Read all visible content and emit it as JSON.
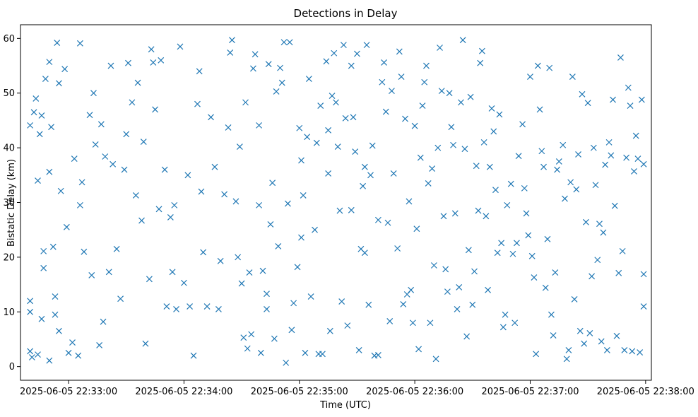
{
  "chart_data": {
    "type": "scatter",
    "title": "Detections in Delay",
    "xlabel": "Time (UTC)",
    "ylabel": "Bistatic Delay (km)",
    "marker": "x",
    "color": "#1f77b4",
    "grid": false,
    "xlim": [
      "2025-06-05 22:32:35",
      "2025-06-05 22:38:03"
    ],
    "ylim": [
      -2.5,
      62.5
    ],
    "x_ticks": [
      "2025-06-05 22:33:00",
      "2025-06-05 22:34:00",
      "2025-06-05 22:35:00",
      "2025-06-05 22:36:00",
      "2025-06-05 22:37:00",
      "2025-06-05 22:38:00"
    ],
    "y_ticks": [
      0,
      10,
      20,
      30,
      40,
      50,
      60
    ],
    "points": [
      [
        "2025-06-05 22:32:40",
        44.1
      ],
      [
        "2025-06-05 22:32:42",
        46.5
      ],
      [
        "2025-06-05 22:32:43",
        49.0
      ],
      [
        "2025-06-05 22:32:44",
        34.0
      ],
      [
        "2025-06-05 22:32:45",
        42.5
      ],
      [
        "2025-06-05 22:32:46",
        45.9
      ],
      [
        "2025-06-05 22:32:47",
        21.1
      ],
      [
        "2025-06-05 22:32:47",
        18.0
      ],
      [
        "2025-06-05 22:32:48",
        52.6
      ],
      [
        "2025-06-05 22:32:50",
        55.7
      ],
      [
        "2025-06-05 22:32:50",
        35.6
      ],
      [
        "2025-06-05 22:32:51",
        43.8
      ],
      [
        "2025-06-05 22:32:52",
        21.9
      ],
      [
        "2025-06-05 22:32:54",
        59.2
      ],
      [
        "2025-06-05 22:32:55",
        51.8
      ],
      [
        "2025-06-05 22:32:56",
        32.1
      ],
      [
        "2025-06-05 22:32:58",
        54.4
      ],
      [
        "2025-06-05 22:32:40",
        12.0
      ],
      [
        "2025-06-05 22:32:40",
        10.0
      ],
      [
        "2025-06-05 22:32:40",
        2.8
      ],
      [
        "2025-06-05 22:32:41",
        1.7
      ],
      [
        "2025-06-05 22:32:44",
        2.2
      ],
      [
        "2025-06-05 22:32:46",
        8.7
      ],
      [
        "2025-06-05 22:32:50",
        1.1
      ],
      [
        "2025-06-05 22:32:53",
        12.8
      ],
      [
        "2025-06-05 22:32:53",
        9.5
      ],
      [
        "2025-06-05 22:32:55",
        6.5
      ],
      [
        "2025-06-05 22:32:59",
        25.5
      ],
      [
        "2025-06-05 22:33:00",
        2.5
      ],
      [
        "2025-06-05 22:33:02",
        4.4
      ],
      [
        "2025-06-05 22:33:03",
        38.0
      ],
      [
        "2025-06-05 22:33:05",
        2.0
      ],
      [
        "2025-06-05 22:33:06",
        59.1
      ],
      [
        "2025-06-05 22:33:06",
        29.5
      ],
      [
        "2025-06-05 22:33:07",
        33.7
      ],
      [
        "2025-06-05 22:33:08",
        21.0
      ],
      [
        "2025-06-05 22:33:11",
        46.0
      ],
      [
        "2025-06-05 22:33:12",
        16.7
      ],
      [
        "2025-06-05 22:33:13",
        50.0
      ],
      [
        "2025-06-05 22:33:14",
        40.6
      ],
      [
        "2025-06-05 22:33:16",
        3.9
      ],
      [
        "2025-06-05 22:33:17",
        44.3
      ],
      [
        "2025-06-05 22:33:18",
        8.2
      ],
      [
        "2025-06-05 22:33:19",
        38.4
      ],
      [
        "2025-06-05 22:33:21",
        17.3
      ],
      [
        "2025-06-05 22:33:22",
        55.0
      ],
      [
        "2025-06-05 22:33:23",
        37.0
      ],
      [
        "2025-06-05 22:33:25",
        21.5
      ],
      [
        "2025-06-05 22:33:27",
        12.4
      ],
      [
        "2025-06-05 22:33:29",
        36.0
      ],
      [
        "2025-06-05 22:33:30",
        42.5
      ],
      [
        "2025-06-05 22:33:31",
        55.5
      ],
      [
        "2025-06-05 22:33:33",
        48.3
      ],
      [
        "2025-06-05 22:33:35",
        31.3
      ],
      [
        "2025-06-05 22:33:36",
        51.9
      ],
      [
        "2025-06-05 22:33:38",
        26.7
      ],
      [
        "2025-06-05 22:33:39",
        41.1
      ],
      [
        "2025-06-05 22:33:40",
        4.2
      ],
      [
        "2025-06-05 22:33:42",
        16.0
      ],
      [
        "2025-06-05 22:33:43",
        58.0
      ],
      [
        "2025-06-05 22:33:44",
        55.6
      ],
      [
        "2025-06-05 22:33:45",
        47.0
      ],
      [
        "2025-06-05 22:33:47",
        28.8
      ],
      [
        "2025-06-05 22:33:48",
        56.0
      ],
      [
        "2025-06-05 22:33:50",
        36.0
      ],
      [
        "2025-06-05 22:33:51",
        11.0
      ],
      [
        "2025-06-05 22:33:53",
        27.3
      ],
      [
        "2025-06-05 22:33:54",
        17.3
      ],
      [
        "2025-06-05 22:33:55",
        29.5
      ],
      [
        "2025-06-05 22:33:56",
        10.5
      ],
      [
        "2025-06-05 22:33:58",
        58.5
      ],
      [
        "2025-06-05 22:34:00",
        15.3
      ],
      [
        "2025-06-05 22:34:02",
        35.0
      ],
      [
        "2025-06-05 22:34:03",
        11.0
      ],
      [
        "2025-06-05 22:34:05",
        2.0
      ],
      [
        "2025-06-05 22:34:07",
        48.0
      ],
      [
        "2025-06-05 22:34:08",
        54.0
      ],
      [
        "2025-06-05 22:34:09",
        32.0
      ],
      [
        "2025-06-05 22:34:10",
        20.9
      ],
      [
        "2025-06-05 22:34:12",
        11.0
      ],
      [
        "2025-06-05 22:34:14",
        45.6
      ],
      [
        "2025-06-05 22:34:16",
        36.5
      ],
      [
        "2025-06-05 22:34:18",
        10.5
      ],
      [
        "2025-06-05 22:34:19",
        19.3
      ],
      [
        "2025-06-05 22:34:21",
        31.5
      ],
      [
        "2025-06-05 22:34:23",
        43.7
      ],
      [
        "2025-06-05 22:34:24",
        57.4
      ],
      [
        "2025-06-05 22:34:25",
        59.7
      ],
      [
        "2025-06-05 22:34:27",
        30.2
      ],
      [
        "2025-06-05 22:34:28",
        20.0
      ],
      [
        "2025-06-05 22:34:29",
        40.2
      ],
      [
        "2025-06-05 22:34:30",
        15.2
      ],
      [
        "2025-06-05 22:34:31",
        5.3
      ],
      [
        "2025-06-05 22:34:32",
        48.3
      ],
      [
        "2025-06-05 22:34:33",
        3.3
      ],
      [
        "2025-06-05 22:34:34",
        17.2
      ],
      [
        "2025-06-05 22:34:35",
        5.9
      ],
      [
        "2025-06-05 22:34:36",
        54.5
      ],
      [
        "2025-06-05 22:34:37",
        57.1
      ],
      [
        "2025-06-05 22:34:39",
        29.5
      ],
      [
        "2025-06-05 22:34:39",
        44.1
      ],
      [
        "2025-06-05 22:34:40",
        2.5
      ],
      [
        "2025-06-05 22:34:41",
        17.5
      ],
      [
        "2025-06-05 22:34:43",
        13.3
      ],
      [
        "2025-06-05 22:34:43",
        10.5
      ],
      [
        "2025-06-05 22:34:44",
        55.3
      ],
      [
        "2025-06-05 22:34:45",
        26.0
      ],
      [
        "2025-06-05 22:34:46",
        33.6
      ],
      [
        "2025-06-05 22:34:47",
        5.1
      ],
      [
        "2025-06-05 22:34:48",
        50.3
      ],
      [
        "2025-06-05 22:34:49",
        22.0
      ],
      [
        "2025-06-05 22:34:50",
        54.6
      ],
      [
        "2025-06-05 22:34:51",
        51.9
      ],
      [
        "2025-06-05 22:34:52",
        59.3
      ],
      [
        "2025-06-05 22:34:53",
        0.7
      ],
      [
        "2025-06-05 22:34:54",
        29.8
      ],
      [
        "2025-06-05 22:34:55",
        59.3
      ],
      [
        "2025-06-05 22:34:56",
        6.7
      ],
      [
        "2025-06-05 22:34:57",
        11.6
      ],
      [
        "2025-06-05 22:34:59",
        18.2
      ],
      [
        "2025-06-05 22:35:00",
        43.6
      ],
      [
        "2025-06-05 22:35:01",
        37.7
      ],
      [
        "2025-06-05 22:35:01",
        23.6
      ],
      [
        "2025-06-05 22:35:02",
        31.3
      ],
      [
        "2025-06-05 22:35:03",
        2.5
      ],
      [
        "2025-06-05 22:35:04",
        42.0
      ],
      [
        "2025-06-05 22:35:05",
        52.6
      ],
      [
        "2025-06-05 22:35:06",
        12.8
      ],
      [
        "2025-06-05 22:35:08",
        25.0
      ],
      [
        "2025-06-05 22:35:09",
        40.9
      ],
      [
        "2025-06-05 22:35:10",
        2.3
      ],
      [
        "2025-06-05 22:35:11",
        47.7
      ],
      [
        "2025-06-05 22:35:12",
        2.3
      ],
      [
        "2025-06-05 22:35:14",
        55.8
      ],
      [
        "2025-06-05 22:35:15",
        43.2
      ],
      [
        "2025-06-05 22:35:15",
        35.3
      ],
      [
        "2025-06-05 22:35:16",
        6.5
      ],
      [
        "2025-06-05 22:35:17",
        49.5
      ],
      [
        "2025-06-05 22:35:18",
        57.3
      ],
      [
        "2025-06-05 22:35:19",
        48.3
      ],
      [
        "2025-06-05 22:35:20",
        40.2
      ],
      [
        "2025-06-05 22:35:21",
        28.5
      ],
      [
        "2025-06-05 22:35:22",
        11.9
      ],
      [
        "2025-06-05 22:35:23",
        58.8
      ],
      [
        "2025-06-05 22:35:24",
        45.4
      ],
      [
        "2025-06-05 22:35:25",
        7.5
      ],
      [
        "2025-06-05 22:35:27",
        55.0
      ],
      [
        "2025-06-05 22:35:27",
        28.6
      ],
      [
        "2025-06-05 22:35:28",
        45.6
      ],
      [
        "2025-06-05 22:35:29",
        39.3
      ],
      [
        "2025-06-05 22:35:30",
        57.2
      ],
      [
        "2025-06-05 22:35:31",
        3.0
      ],
      [
        "2025-06-05 22:35:32",
        21.5
      ],
      [
        "2025-06-05 22:35:33",
        33.0
      ],
      [
        "2025-06-05 22:35:34",
        36.5
      ],
      [
        "2025-06-05 22:35:34",
        20.8
      ],
      [
        "2025-06-05 22:35:35",
        58.8
      ],
      [
        "2025-06-05 22:35:36",
        11.3
      ],
      [
        "2025-06-05 22:35:37",
        35.0
      ],
      [
        "2025-06-05 22:35:38",
        40.4
      ],
      [
        "2025-06-05 22:35:39",
        2.0
      ],
      [
        "2025-06-05 22:35:41",
        2.1
      ],
      [
        "2025-06-05 22:35:41",
        26.8
      ],
      [
        "2025-06-05 22:35:43",
        52.0
      ],
      [
        "2025-06-05 22:35:44",
        55.6
      ],
      [
        "2025-06-05 22:35:45",
        46.6
      ],
      [
        "2025-06-05 22:35:46",
        26.3
      ],
      [
        "2025-06-05 22:35:47",
        8.3
      ],
      [
        "2025-06-05 22:35:48",
        50.4
      ],
      [
        "2025-06-05 22:35:49",
        35.3
      ],
      [
        "2025-06-05 22:35:51",
        21.6
      ],
      [
        "2025-06-05 22:35:52",
        57.6
      ],
      [
        "2025-06-05 22:35:53",
        53.0
      ],
      [
        "2025-06-05 22:35:54",
        11.4
      ],
      [
        "2025-06-05 22:35:55",
        45.3
      ],
      [
        "2025-06-05 22:35:56",
        13.2
      ],
      [
        "2025-06-05 22:35:57",
        30.2
      ],
      [
        "2025-06-05 22:35:58",
        14.0
      ],
      [
        "2025-06-05 22:35:59",
        8.0
      ],
      [
        "2025-06-05 22:36:00",
        44.0
      ],
      [
        "2025-06-05 22:36:01",
        25.2
      ],
      [
        "2025-06-05 22:36:02",
        3.2
      ],
      [
        "2025-06-05 22:36:03",
        38.2
      ],
      [
        "2025-06-05 22:36:04",
        47.7
      ],
      [
        "2025-06-05 22:36:05",
        52.0
      ],
      [
        "2025-06-05 22:36:06",
        55.0
      ],
      [
        "2025-06-05 22:36:07",
        33.5
      ],
      [
        "2025-06-05 22:36:08",
        8.0
      ],
      [
        "2025-06-05 22:36:09",
        36.2
      ],
      [
        "2025-06-05 22:36:10",
        18.5
      ],
      [
        "2025-06-05 22:36:11",
        1.4
      ],
      [
        "2025-06-05 22:36:12",
        40.0
      ],
      [
        "2025-06-05 22:36:13",
        58.3
      ],
      [
        "2025-06-05 22:36:14",
        50.4
      ],
      [
        "2025-06-05 22:36:15",
        27.5
      ],
      [
        "2025-06-05 22:36:16",
        17.8
      ],
      [
        "2025-06-05 22:36:17",
        13.7
      ],
      [
        "2025-06-05 22:36:18",
        50.0
      ],
      [
        "2025-06-05 22:36:19",
        43.8
      ],
      [
        "2025-06-05 22:36:20",
        40.5
      ],
      [
        "2025-06-05 22:36:21",
        28.0
      ],
      [
        "2025-06-05 22:36:22",
        10.5
      ],
      [
        "2025-06-05 22:36:23",
        14.5
      ],
      [
        "2025-06-05 22:36:24",
        48.3
      ],
      [
        "2025-06-05 22:36:25",
        59.7
      ],
      [
        "2025-06-05 22:36:26",
        39.8
      ],
      [
        "2025-06-05 22:36:27",
        5.5
      ],
      [
        "2025-06-05 22:36:28",
        21.3
      ],
      [
        "2025-06-05 22:36:29",
        49.3
      ],
      [
        "2025-06-05 22:36:30",
        11.3
      ],
      [
        "2025-06-05 22:36:31",
        17.4
      ],
      [
        "2025-06-05 22:36:32",
        36.7
      ],
      [
        "2025-06-05 22:36:33",
        28.5
      ],
      [
        "2025-06-05 22:36:34",
        55.5
      ],
      [
        "2025-06-05 22:36:35",
        57.7
      ],
      [
        "2025-06-05 22:36:36",
        41.0
      ],
      [
        "2025-06-05 22:36:37",
        27.5
      ],
      [
        "2025-06-05 22:36:38",
        14.0
      ],
      [
        "2025-06-05 22:36:39",
        36.5
      ],
      [
        "2025-06-05 22:36:40",
        47.2
      ],
      [
        "2025-06-05 22:36:41",
        43.0
      ],
      [
        "2025-06-05 22:36:42",
        32.3
      ],
      [
        "2025-06-05 22:36:43",
        20.8
      ],
      [
        "2025-06-05 22:36:44",
        46.1
      ],
      [
        "2025-06-05 22:36:45",
        22.6
      ],
      [
        "2025-06-05 22:36:46",
        7.2
      ],
      [
        "2025-06-05 22:36:47",
        9.5
      ],
      [
        "2025-06-05 22:36:48",
        29.5
      ],
      [
        "2025-06-05 22:36:50",
        33.4
      ],
      [
        "2025-06-05 22:36:51",
        20.6
      ],
      [
        "2025-06-05 22:36:52",
        8.0
      ],
      [
        "2025-06-05 22:36:53",
        22.6
      ],
      [
        "2025-06-05 22:36:54",
        38.5
      ],
      [
        "2025-06-05 22:36:56",
        44.3
      ],
      [
        "2025-06-05 22:36:57",
        32.6
      ],
      [
        "2025-06-05 22:36:58",
        28.0
      ],
      [
        "2025-06-05 22:36:59",
        24.0
      ],
      [
        "2025-06-05 22:37:00",
        53.0
      ],
      [
        "2025-06-05 22:37:01",
        20.2
      ],
      [
        "2025-06-05 22:37:02",
        16.3
      ],
      [
        "2025-06-05 22:37:03",
        2.3
      ],
      [
        "2025-06-05 22:37:04",
        55.0
      ],
      [
        "2025-06-05 22:37:05",
        47.0
      ],
      [
        "2025-06-05 22:37:06",
        39.4
      ],
      [
        "2025-06-05 22:37:07",
        36.5
      ],
      [
        "2025-06-05 22:37:08",
        14.4
      ],
      [
        "2025-06-05 22:37:09",
        23.3
      ],
      [
        "2025-06-05 22:37:10",
        54.6
      ],
      [
        "2025-06-05 22:37:11",
        9.5
      ],
      [
        "2025-06-05 22:37:12",
        5.7
      ],
      [
        "2025-06-05 22:37:13",
        17.2
      ],
      [
        "2025-06-05 22:37:14",
        36.0
      ],
      [
        "2025-06-05 22:37:15",
        37.5
      ],
      [
        "2025-06-05 22:37:17",
        40.5
      ],
      [
        "2025-06-05 22:37:18",
        30.7
      ],
      [
        "2025-06-05 22:37:19",
        1.4
      ],
      [
        "2025-06-05 22:37:20",
        3.0
      ],
      [
        "2025-06-05 22:37:21",
        33.7
      ],
      [
        "2025-06-05 22:37:22",
        53.0
      ],
      [
        "2025-06-05 22:37:23",
        12.3
      ],
      [
        "2025-06-05 22:37:24",
        32.4
      ],
      [
        "2025-06-05 22:37:25",
        38.8
      ],
      [
        "2025-06-05 22:37:26",
        6.5
      ],
      [
        "2025-06-05 22:37:27",
        49.8
      ],
      [
        "2025-06-05 22:37:28",
        4.2
      ],
      [
        "2025-06-05 22:37:29",
        26.4
      ],
      [
        "2025-06-05 22:37:30",
        48.2
      ],
      [
        "2025-06-05 22:37:31",
        6.1
      ],
      [
        "2025-06-05 22:37:32",
        16.5
      ],
      [
        "2025-06-05 22:37:33",
        40.0
      ],
      [
        "2025-06-05 22:37:34",
        33.2
      ],
      [
        "2025-06-05 22:37:35",
        19.5
      ],
      [
        "2025-06-05 22:37:36",
        26.1
      ],
      [
        "2025-06-05 22:37:37",
        4.6
      ],
      [
        "2025-06-05 22:37:38",
        24.5
      ],
      [
        "2025-06-05 22:37:39",
        36.9
      ],
      [
        "2025-06-05 22:37:40",
        3.0
      ],
      [
        "2025-06-05 22:37:41",
        41.0
      ],
      [
        "2025-06-05 22:37:42",
        38.6
      ],
      [
        "2025-06-05 22:37:43",
        48.8
      ],
      [
        "2025-06-05 22:37:44",
        29.4
      ],
      [
        "2025-06-05 22:37:45",
        5.6
      ],
      [
        "2025-06-05 22:37:46",
        17.1
      ],
      [
        "2025-06-05 22:37:47",
        56.5
      ],
      [
        "2025-06-05 22:37:48",
        21.1
      ],
      [
        "2025-06-05 22:37:49",
        3.0
      ],
      [
        "2025-06-05 22:37:50",
        38.2
      ],
      [
        "2025-06-05 22:37:51",
        51.0
      ],
      [
        "2025-06-05 22:37:52",
        47.7
      ],
      [
        "2025-06-05 22:37:53",
        2.8
      ],
      [
        "2025-06-05 22:37:54",
        35.7
      ],
      [
        "2025-06-05 22:37:55",
        42.2
      ],
      [
        "2025-06-05 22:37:56",
        38.0
      ],
      [
        "2025-06-05 22:37:57",
        2.6
      ],
      [
        "2025-06-05 22:37:58",
        48.8
      ],
      [
        "2025-06-05 22:37:59",
        37.0
      ],
      [
        "2025-06-05 22:37:59",
        16.9
      ],
      [
        "2025-06-05 22:37:59",
        11.0
      ]
    ]
  }
}
